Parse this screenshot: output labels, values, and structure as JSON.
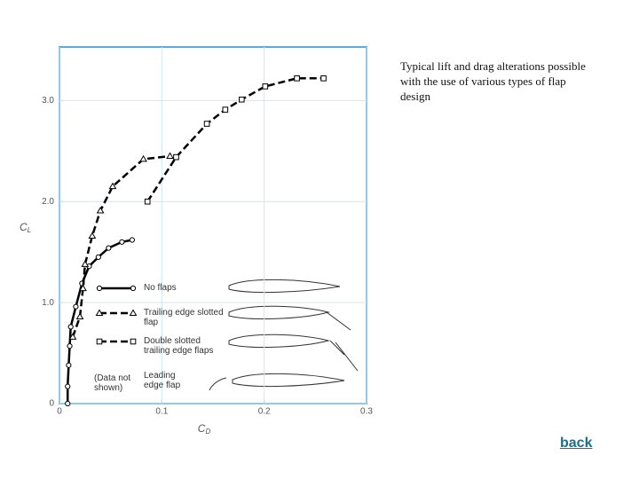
{
  "chart_data": {
    "type": "line",
    "xlabel_main": "C",
    "xlabel_sub": "D",
    "ylabel_main": "C",
    "ylabel_sub": "L",
    "xlim": [
      0,
      0.3
    ],
    "ylim": [
      0,
      3.53
    ],
    "xticks": [
      0,
      0.1,
      0.2,
      0.3
    ],
    "yticks": [
      0,
      {
        "value": 1,
        "label": "1.0"
      },
      {
        "value": 2,
        "label": "2.0"
      },
      {
        "value": 3,
        "label": "3.0"
      }
    ],
    "grid": true,
    "series": [
      {
        "name": "No flaps",
        "color": "#000000",
        "marker": "circle",
        "dashed": false,
        "x": [
          0.008,
          0.008,
          0.009,
          0.01,
          0.011,
          0.016,
          0.022,
          0.029,
          0.038,
          0.048,
          0.061,
          0.071
        ],
        "values": [
          0,
          0.17,
          0.38,
          0.57,
          0.76,
          0.96,
          1.19,
          1.36,
          1.45,
          1.54,
          1.6,
          1.62
        ]
      },
      {
        "name": "Trailing edge slotted flap",
        "color": "#000000",
        "marker": "triangle",
        "dashed": true,
        "x": [
          0.013,
          0.02,
          0.023,
          0.025,
          0.032,
          0.04,
          0.052,
          0.082,
          0.108
        ],
        "values": [
          0.66,
          0.86,
          1.14,
          1.38,
          1.66,
          1.91,
          2.15,
          2.42,
          2.45
        ]
      },
      {
        "name": "Double slotted trailing edge flaps",
        "color": "#000000",
        "marker": "square",
        "dashed": true,
        "x": [
          0.086,
          0.114,
          0.144,
          0.162,
          0.178,
          0.201,
          0.232,
          0.258
        ],
        "values": [
          2.0,
          2.44,
          2.77,
          2.91,
          3.01,
          3.14,
          3.22,
          3.22
        ]
      }
    ],
    "legend_extra": {
      "note": "(Data not shown)",
      "label": "Leading edge flap"
    }
  },
  "caption": "Typical lift and drag alterations possible with the use of various types of flap design",
  "back": "back"
}
